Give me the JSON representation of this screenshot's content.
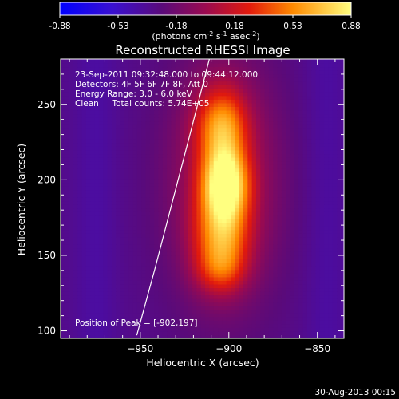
{
  "chart_data": {
    "type": "heatmap",
    "title": "Reconstructed RHESSI Image",
    "xlabel": "Heliocentric X (arcsec)",
    "ylabel": "Heliocentric Y (arcsec)",
    "xlim": [
      -995,
      -835
    ],
    "ylim": [
      95,
      280
    ],
    "x_ticks": [
      -950,
      -900,
      -850
    ],
    "y_ticks": [
      100,
      150,
      200,
      250
    ],
    "colorbar": {
      "ticks": [
        "-0.88",
        "-0.53",
        "-0.18",
        "0.18",
        "0.53",
        "0.88"
      ],
      "range": [
        -0.88,
        0.88
      ],
      "label_main": "(photons cm",
      "label_exp1": "-2",
      "label_mid1": " s",
      "label_exp2": "-1",
      "label_mid2": " asec",
      "label_exp3": "-2",
      "label_end": ")"
    },
    "annotations": [
      "23-Sep-2011 09:32:48.000 to 09:44:12.000",
      "Detectors: 4F 5F 6F 7F 8F, Att 0",
      "Energy Range: 3.0 - 6.0 keV",
      "Clean     Total counts: 5.74E+05"
    ],
    "peak_label": "Position of Peak = [-902,197]",
    "peak": [
      -902,
      197
    ],
    "limb_line": [
      [
        -952,
        97
      ],
      [
        -942,
        140
      ],
      [
        -932,
        185
      ],
      [
        -922,
        230
      ],
      [
        -911,
        280
      ]
    ],
    "sources": [
      {
        "x": -902,
        "y": 198,
        "sx": 9,
        "sy": 16,
        "amp": 0.9
      },
      {
        "x": -904,
        "y": 236,
        "sx": 10,
        "sy": 18,
        "amp": 0.62
      },
      {
        "x": -904,
        "y": 164,
        "sx": 11,
        "sy": 20,
        "amp": 0.6
      },
      {
        "x": -905,
        "y": 140,
        "sx": 10,
        "sy": 12,
        "amp": 0.3
      },
      {
        "x": -903,
        "y": 200,
        "sx": 22,
        "sy": 58,
        "amp": 0.42
      }
    ],
    "background": -0.32,
    "date_stamp": "30-Aug-2013 00:15"
  }
}
